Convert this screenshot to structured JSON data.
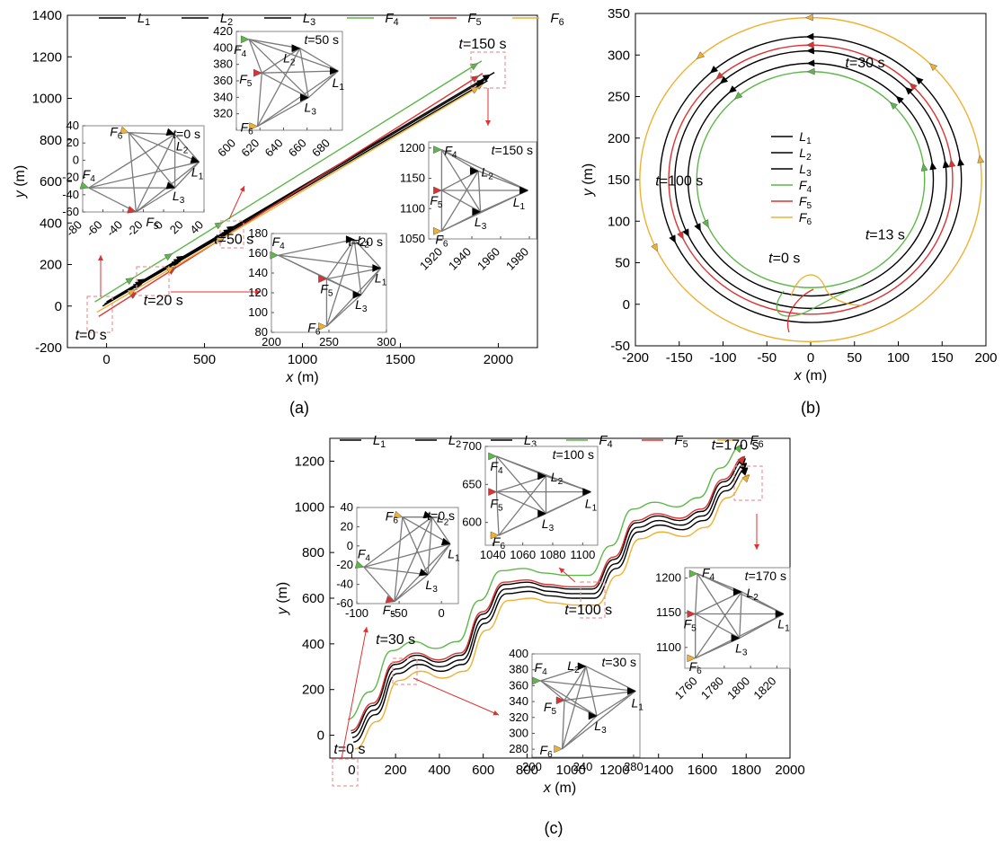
{
  "colors": {
    "L": "#000000",
    "F4": "#5cb848",
    "F5": "#e03030",
    "F6": "#f0b030",
    "annot": "#e03030",
    "box": "#e89a9a"
  },
  "legend": [
    {
      "key": "L1",
      "name": "L",
      "sub": "1",
      "color": "#000000"
    },
    {
      "key": "L2",
      "name": "L",
      "sub": "2",
      "color": "#000000"
    },
    {
      "key": "L3",
      "name": "L",
      "sub": "3",
      "color": "#000000"
    },
    {
      "key": "F4",
      "name": "F",
      "sub": "4",
      "color": "#5cb848"
    },
    {
      "key": "F5",
      "name": "F",
      "sub": "5",
      "color": "#e03030"
    },
    {
      "key": "F6",
      "name": "F",
      "sub": "6",
      "color": "#f0b030"
    }
  ],
  "chart_data": [
    {
      "panel": "(a)",
      "type": "line",
      "xlabel": "x (m)",
      "ylabel": "y (m)",
      "xlim": [
        -200,
        2200
      ],
      "ylim": [
        -200,
        1400
      ],
      "xticks": [
        0,
        500,
        1000,
        1500,
        2000
      ],
      "yticks": [
        -200,
        0,
        200,
        400,
        600,
        800,
        1000,
        1200,
        1400
      ],
      "series": [
        {
          "key": "L1",
          "x": [
            0,
            1980
          ],
          "y": [
            20,
            1125
          ]
        },
        {
          "key": "L2",
          "x": [
            -10,
            1950
          ],
          "y": [
            10,
            1100
          ]
        },
        {
          "key": "L3",
          "x": [
            -20,
            1945
          ],
          "y": [
            0,
            1085
          ]
        },
        {
          "key": "F4",
          "x": [
            -60,
            1915
          ],
          "y": [
            20,
            1180
          ]
        },
        {
          "key": "F5",
          "x": [
            -40,
            1920
          ],
          "y": [
            -50,
            1120
          ]
        },
        {
          "key": "F6",
          "x": [
            -50,
            1920
          ],
          "y": [
            -30,
            1065
          ]
        }
      ],
      "time_labels": [
        {
          "text": "t=0 s",
          "x": -80,
          "y": -160
        },
        {
          "text": "t=20 s",
          "x": 290,
          "y": 5
        },
        {
          "text": "t=50 s",
          "x": 650,
          "y": 300
        },
        {
          "text": "t=150 s",
          "x": 1920,
          "y": 1240
        }
      ],
      "insets": [
        {
          "label": "t=0 s",
          "xlim": [
            -80,
            40
          ],
          "ylim": [
            -60,
            40
          ],
          "xticks": [
            -80,
            -60,
            -40,
            -20,
            0,
            20,
            40
          ],
          "yticks": [
            -60,
            -40,
            -20,
            0,
            20,
            40
          ]
        },
        {
          "label": "t=50 s",
          "xlim": [
            600,
            690
          ],
          "ylim": [
            300,
            420
          ],
          "xticks": [
            600,
            620,
            640,
            660,
            680
          ],
          "yticks": [
            320,
            340,
            360,
            380,
            400,
            420
          ]
        },
        {
          "label": "t=20 s",
          "xlim": [
            200,
            300
          ],
          "ylim": [
            80,
            180
          ],
          "xticks": [
            200,
            250,
            300
          ],
          "yticks": [
            80,
            100,
            120,
            140,
            160,
            180
          ]
        },
        {
          "label": "t=150 s",
          "xlim": [
            1910,
            1985
          ],
          "ylim": [
            1050,
            1210
          ],
          "xticks": [
            1920,
            1940,
            1960,
            1980
          ],
          "yticks": [
            1050,
            1100,
            1150,
            1200
          ]
        }
      ]
    },
    {
      "panel": "(b)",
      "type": "line",
      "xlabel": "x (m)",
      "ylabel": "y (m)",
      "xlim": [
        -200,
        200
      ],
      "ylim": [
        -50,
        350
      ],
      "xticks": [
        -200,
        -150,
        -100,
        -50,
        0,
        50,
        100,
        150,
        200
      ],
      "yticks": [
        -50,
        0,
        50,
        100,
        150,
        200,
        250,
        300,
        350
      ],
      "circles": [
        {
          "key": "F4",
          "cx": 0,
          "cy": 150,
          "r": 130
        },
        {
          "key": "L3",
          "cx": 0,
          "cy": 150,
          "r": 140
        },
        {
          "key": "L2",
          "cx": 0,
          "cy": 150,
          "r": 155
        },
        {
          "key": "F5",
          "cx": 0,
          "cy": 150,
          "r": 162
        },
        {
          "key": "L1",
          "cx": 0,
          "cy": 150,
          "r": 172
        },
        {
          "key": "F6",
          "cx": 0,
          "cy": 150,
          "r": 195
        }
      ],
      "time_labels": [
        {
          "text": "t=0 s",
          "x": -30,
          "y": 50
        },
        {
          "text": "t=13 s",
          "x": 85,
          "y": 78
        },
        {
          "text": "t=30 s",
          "x": 62,
          "y": 285
        },
        {
          "text": "t=100 s",
          "x": -150,
          "y": 143
        }
      ]
    },
    {
      "panel": "(c)",
      "type": "line",
      "xlabel": "x (m)",
      "ylabel": "y (m)",
      "xlim": [
        -100,
        2000
      ],
      "ylim": [
        -100,
        1300
      ],
      "xticks": [
        0,
        200,
        400,
        600,
        800,
        1000,
        1200,
        1400,
        1600,
        1800,
        2000
      ],
      "yticks": [
        0,
        200,
        400,
        600,
        800,
        1000,
        1200
      ],
      "series": [
        {
          "key": "L1",
          "offset": 10
        },
        {
          "key": "L2",
          "offset": -10
        },
        {
          "key": "L3",
          "offset": -30
        },
        {
          "key": "F4",
          "offset": 70
        },
        {
          "key": "F5",
          "offset": 20
        },
        {
          "key": "F6",
          "offset": -60
        }
      ],
      "path_x": [
        0,
        100,
        200,
        300,
        400,
        500,
        600,
        700,
        800,
        900,
        1000,
        1100,
        1200,
        1300,
        1400,
        1500,
        1600,
        1700,
        1800
      ],
      "path_y": [
        0,
        120,
        300,
        340,
        310,
        340,
        520,
        650,
        660,
        640,
        630,
        630,
        760,
        920,
        950,
        930,
        970,
        1100,
        1200
      ],
      "time_labels": [
        {
          "text": "t=0 s",
          "x": -10,
          "y": -80
        },
        {
          "text": "t=30 s",
          "x": 200,
          "y": 400
        },
        {
          "text": "t=100 s",
          "x": 1080,
          "y": 530
        },
        {
          "text": "t=170 s",
          "x": 1750,
          "y": 1250
        }
      ],
      "insets": [
        {
          "label": "t=0 s",
          "xlim": [
            -100,
            20
          ],
          "ylim": [
            -60,
            40
          ],
          "xticks": [
            -100,
            -50,
            0
          ],
          "yticks": [
            -60,
            -40,
            -20,
            0,
            20,
            40
          ]
        },
        {
          "label": "t=100 s",
          "xlim": [
            1035,
            1110
          ],
          "ylim": [
            570,
            700
          ],
          "xticks": [
            1040,
            1060,
            1080,
            1100
          ],
          "yticks": [
            600,
            650,
            700
          ]
        },
        {
          "label": "t=30 s",
          "xlim": [
            200,
            285
          ],
          "ylim": [
            270,
            400
          ],
          "xticks": [
            200,
            240,
            280
          ],
          "yticks": [
            280,
            300,
            320,
            340,
            360,
            380,
            400
          ]
        },
        {
          "label": "t=170 s",
          "xlim": [
            1750,
            1830
          ],
          "ylim": [
            1070,
            1215
          ],
          "xticks": [
            1760,
            1780,
            1800,
            1820
          ],
          "yticks": [
            1100,
            1150,
            1200
          ]
        }
      ]
    }
  ],
  "panel_labels": [
    "(a)",
    "(b)",
    "(c)"
  ]
}
